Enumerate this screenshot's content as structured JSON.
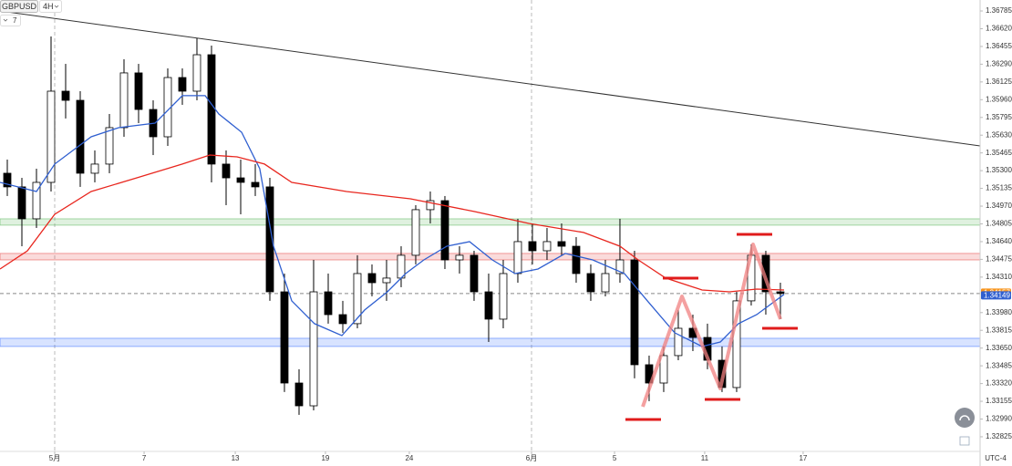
{
  "chart_data": {
    "type": "candlestick",
    "symbol": "GBPUSD",
    "interval": "4H",
    "indicator_count": "7",
    "timezone": "UTC-4",
    "open": [
      1.35276,
      1.35149,
      1.34852,
      1.35191,
      1.36039,
      1.35954,
      1.35276,
      1.35361,
      1.357,
      1.36209,
      1.35869,
      1.35615,
      1.36166,
      1.36039,
      1.36378,
      1.35361,
      1.35233,
      1.35191,
      1.35149,
      1.34173,
      1.33325,
      1.33113,
      1.34173,
      1.33961,
      1.33877,
      1.34343,
      1.34258,
      1.34301,
      1.34513,
      1.34937,
      1.35021,
      1.3447,
      1.34513,
      1.34173,
      1.33919,
      1.34343,
      1.3464,
      1.34555,
      1.3464,
      1.34597,
      1.34343,
      1.34173,
      1.34343,
      1.3447,
      1.33495,
      1.33325,
      1.3358,
      1.33834,
      1.33749,
      1.33537,
      1.33283,
      1.34089,
      1.34513,
      1.34173
    ],
    "high": [
      1.35403,
      1.35233,
      1.35318,
      1.36548,
      1.36293,
      1.36039,
      1.35488,
      1.35827,
      1.36336,
      1.36293,
      1.35954,
      1.36251,
      1.36251,
      1.36531,
      1.36463,
      1.35488,
      1.35403,
      1.35361,
      1.35233,
      1.34343,
      1.33453,
      1.3447,
      1.34343,
      1.34089,
      1.34513,
      1.34428,
      1.3447,
      1.34597,
      1.34979,
      1.35106,
      1.35064,
      1.34597,
      1.34555,
      1.34343,
      1.3447,
      1.34852,
      1.34809,
      1.34767,
      1.34809,
      1.34682,
      1.34428,
      1.3447,
      1.34852,
      1.34555,
      1.3358,
      1.33665,
      1.34004,
      1.33961,
      1.33877,
      1.33665,
      1.34173,
      1.34614,
      1.34555,
      1.34258
    ],
    "low": [
      1.35064,
      1.34597,
      1.34767,
      1.35106,
      1.35785,
      1.35149,
      1.35191,
      1.35276,
      1.35615,
      1.35742,
      1.35445,
      1.3553,
      1.35912,
      1.35954,
      1.35191,
      1.34979,
      1.34894,
      1.35064,
      1.34089,
      1.33241,
      1.33029,
      1.33071,
      1.33877,
      1.33792,
      1.33834,
      1.34131,
      1.34089,
      1.34216,
      1.34428,
      1.34809,
      1.34385,
      1.34343,
      1.34089,
      1.33707,
      1.33834,
      1.34258,
      1.34428,
      1.3447,
      1.34513,
      1.34258,
      1.34089,
      1.34131,
      1.34258,
      1.33368,
      1.33156,
      1.33241,
      1.33537,
      1.33622,
      1.33453,
      1.33241,
      1.33241,
      1.34046,
      1.33961,
      1.33919
    ],
    "close": [
      1.35149,
      1.34852,
      1.35191,
      1.36039,
      1.35954,
      1.35276,
      1.35361,
      1.357,
      1.36209,
      1.35869,
      1.35615,
      1.36166,
      1.36039,
      1.36378,
      1.35361,
      1.35233,
      1.35191,
      1.35149,
      1.34173,
      1.33325,
      1.33113,
      1.34173,
      1.33961,
      1.33877,
      1.34343,
      1.34258,
      1.34301,
      1.34513,
      1.34937,
      1.35021,
      1.3447,
      1.34513,
      1.34173,
      1.33919,
      1.34343,
      1.3464,
      1.34555,
      1.3464,
      1.34597,
      1.34343,
      1.34173,
      1.34343,
      1.3447,
      1.33495,
      1.33325,
      1.3358,
      1.33834,
      1.33749,
      1.33537,
      1.33283,
      1.34089,
      1.34513,
      1.34173,
      1.34157
    ],
    "up_color": "#ffffff",
    "down_color": "#000000",
    "series": [
      {
        "color": "#2f5fd0",
        "x": [
          -0.5,
          2,
          3.25,
          5.75,
          7.63,
          10.13,
          12,
          13.56,
          14.5,
          16.06,
          17.31,
          18.25,
          19.5,
          21.06,
          22.94,
          24.5,
          26.06,
          27.31,
          28.56,
          30.13,
          31.69,
          33.25,
          34.81,
          36.38,
          38.25,
          40.13,
          42.31,
          43.88,
          45.75,
          47.63,
          48.88,
          50.13,
          51.38,
          53.25
        ],
        "values": [
          1.35191,
          1.35106,
          1.35361,
          1.35615,
          1.357,
          1.35742,
          1.35997,
          1.35997,
          1.35827,
          1.35657,
          1.35318,
          1.34597,
          1.34089,
          1.33877,
          1.33766,
          1.34004,
          1.34173,
          1.34343,
          1.3447,
          1.34597,
          1.3464,
          1.3447,
          1.34343,
          1.34385,
          1.3453,
          1.3447,
          1.34343,
          1.34089,
          1.33792,
          1.33665,
          1.33707,
          1.33877,
          1.33961,
          1.34149
        ]
      },
      {
        "color": "#e8261e",
        "x": [
          -0.5,
          1.38,
          3.25,
          5.75,
          8.88,
          12,
          13.88,
          15.75,
          17.63,
          19.5,
          23.25,
          27.63,
          32,
          35.75,
          39.5,
          42,
          43.25,
          45.13,
          47.63,
          49.5,
          51.38,
          53.25
        ],
        "values": [
          1.34385,
          1.34555,
          1.34894,
          1.35106,
          1.35233,
          1.35361,
          1.35445,
          1.35428,
          1.35361,
          1.35191,
          1.35106,
          1.35038,
          1.3492,
          1.34809,
          1.34725,
          1.34597,
          1.3447,
          1.34301,
          1.3419,
          1.34173,
          1.34199,
          1.3419
        ]
      }
    ],
    "trendline": {
      "x": [
        -0.5,
        66.69
      ],
      "values": [
        1.36785,
        1.3553
      ],
      "color": "#333333"
    },
    "zones": [
      {
        "from": 1.34793,
        "to": 1.34852,
        "color": "#4caf50"
      },
      {
        "from": 1.3447,
        "to": 1.3453,
        "color": "#e53935"
      },
      {
        "from": 1.33665,
        "to": 1.33741,
        "color": "#2962ff"
      }
    ],
    "last_price": {
      "value": 1.34157,
      "color": "#f7931a"
    },
    "ma_price": {
      "value": 1.34149,
      "color": "#2f5fd0"
    },
    "xlim": [
      -0.5,
      66.69
    ],
    "xticks": [
      {
        "value": 3.25,
        "label": "5月"
      },
      {
        "value": 9.38,
        "label": "7"
      },
      {
        "value": 15.63,
        "label": "13"
      },
      {
        "value": 21.81,
        "label": "19"
      },
      {
        "value": 27.56,
        "label": "24"
      },
      {
        "value": 35.94,
        "label": "6月"
      },
      {
        "value": 41.63,
        "label": "5"
      },
      {
        "value": 47.81,
        "label": "11"
      },
      {
        "value": 54.56,
        "label": "17"
      }
    ],
    "ylim": [
      1.32689,
      1.36887
    ],
    "yticks": [
      1.36785,
      {
        "value": 1.3662,
        "label": "1.36620"
      },
      1.36455,
      {
        "value": 1.3629,
        "label": "1.36290"
      },
      1.36125,
      {
        "value": 1.3596,
        "label": "1.35960"
      },
      1.35795,
      {
        "value": 1.3563,
        "label": "1.35630"
      },
      1.35465,
      {
        "value": 1.353,
        "label": "1.35300"
      },
      1.35135,
      {
        "value": 1.3497,
        "label": "1.34970"
      },
      1.34805,
      {
        "value": 1.3464,
        "label": "1.34640"
      },
      1.34475,
      {
        "value": 1.3431,
        "label": "1.34310"
      },
      {
        "value": 1.3398,
        "label": "1.33980"
      },
      1.33815,
      {
        "value": 1.3365,
        "label": "1.33650"
      },
      1.33485,
      {
        "value": 1.3332,
        "label": "1.33320"
      },
      1.33155,
      {
        "value": 1.3299,
        "label": "1.32990"
      },
      1.32825
    ],
    "grid": false
  }
}
